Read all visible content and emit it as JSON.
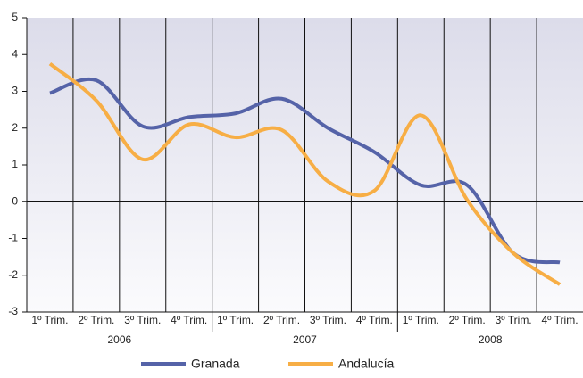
{
  "chart_data": {
    "type": "line",
    "categories": [
      "1º Trim.",
      "2º Trim.",
      "3º Trim.",
      "4º Trim.",
      "1º Trim.",
      "2º Trim.",
      "3º Trim.",
      "4º Trim.",
      "1º Trim.",
      "2º Trim.",
      "3º Trim.",
      "4º Trim."
    ],
    "year_groups": [
      "2006",
      "2007",
      "2008"
    ],
    "series": [
      {
        "name": "Granada",
        "color": "#5563a8",
        "values": [
          2.95,
          3.3,
          2.05,
          2.3,
          2.4,
          2.8,
          2.0,
          1.35,
          0.45,
          0.45,
          -1.4,
          -1.65
        ]
      },
      {
        "name": "Andalucía",
        "color": "#f7ae45",
        "values": [
          3.75,
          2.75,
          1.15,
          2.1,
          1.75,
          1.95,
          0.55,
          0.3,
          2.35,
          0.05,
          -1.4,
          -2.25
        ]
      }
    ],
    "ylim": [
      -3,
      5
    ],
    "yticks": [
      -3,
      -2,
      -1,
      0,
      1,
      2,
      3,
      4,
      5
    ],
    "legend": "bottom"
  }
}
